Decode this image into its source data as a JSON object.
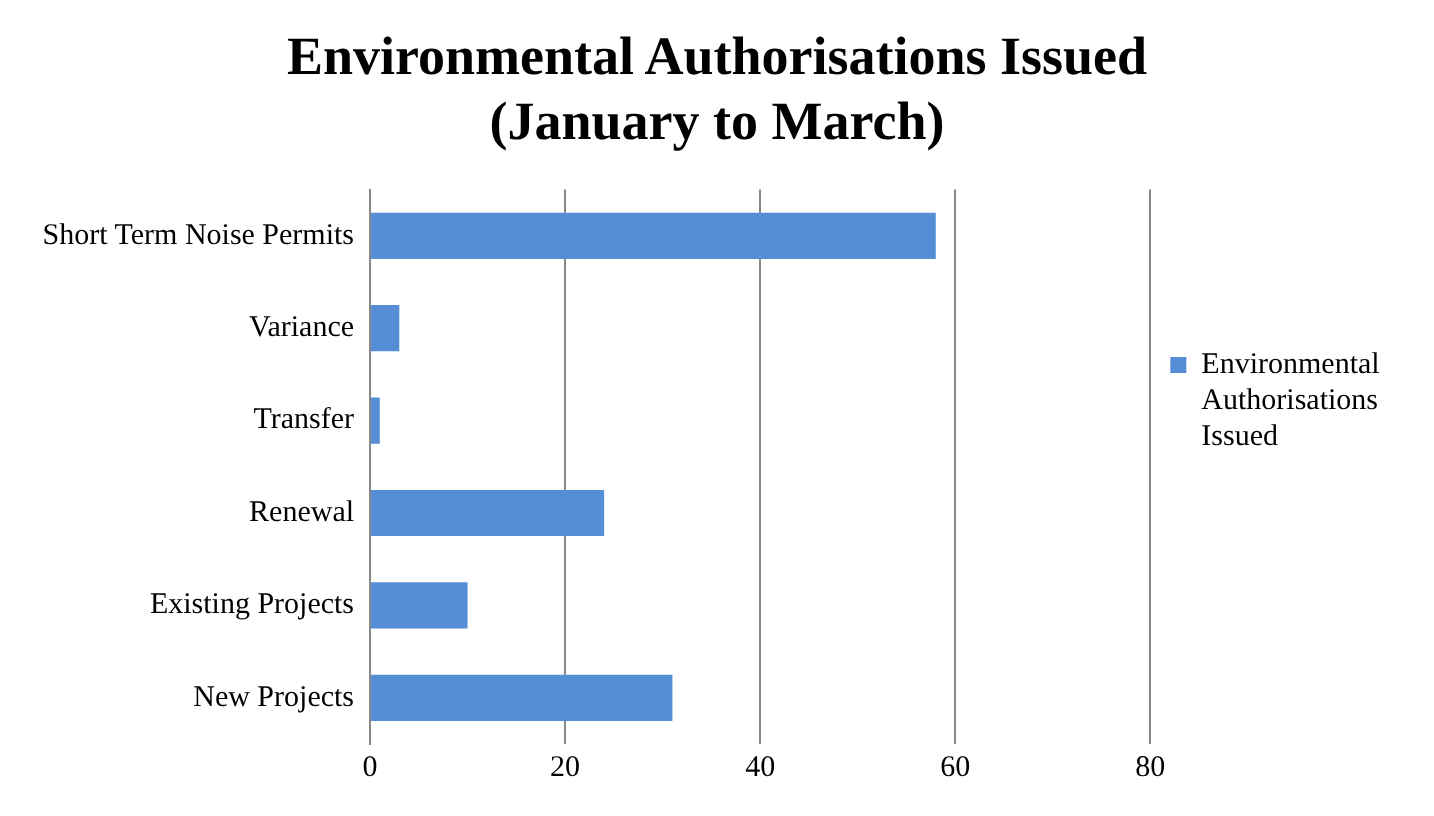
{
  "chart_data": {
    "type": "bar",
    "orientation": "horizontal",
    "title": "Environmental Authorisations Issued (January to March)",
    "categories": [
      "Short Term Noise Permits",
      "Variance",
      "Transfer",
      "Renewal",
      "Existing Projects",
      "New Projects"
    ],
    "series": [
      {
        "name": "Environmental Authorisations Issued",
        "color": "#558ed5",
        "values": [
          58,
          3,
          1,
          24,
          10,
          31
        ]
      }
    ],
    "xlim": [
      0,
      80
    ],
    "xticks": [
      0,
      20,
      40,
      60,
      80
    ],
    "grid": "x",
    "legend": "right"
  }
}
